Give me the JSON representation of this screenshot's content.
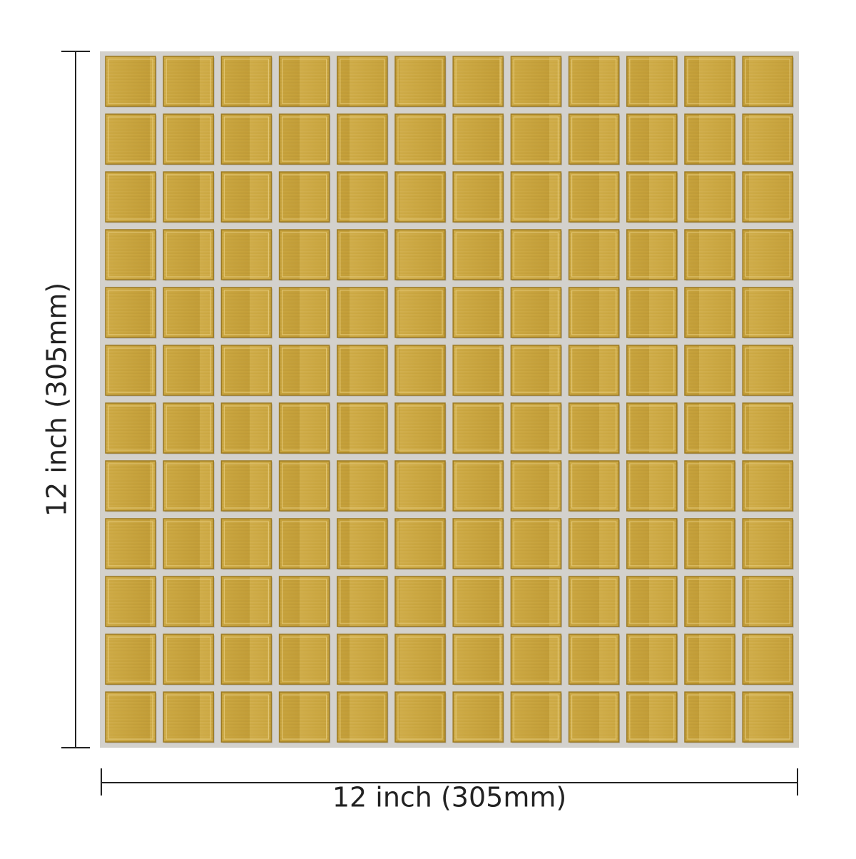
{
  "dimensions": {
    "width_label": "12 inch (305mm)",
    "height_label": "12 inch (305mm)"
  }
}
